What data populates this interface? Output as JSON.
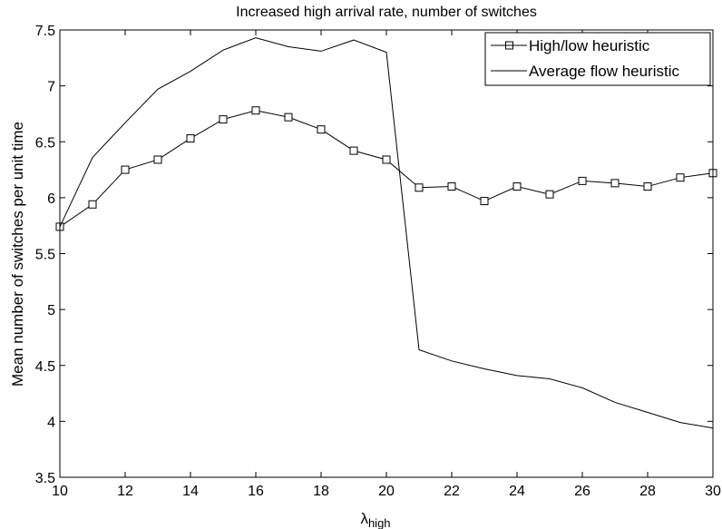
{
  "chart_data": {
    "type": "line",
    "title": "Increased high arrival rate, number of switches",
    "xlabel": "λ",
    "xlabel_sub": "high",
    "ylabel": "Mean number of switches per unit time",
    "xlim": [
      10,
      30
    ],
    "ylim": [
      3.5,
      7.5
    ],
    "xticks": [
      10,
      12,
      14,
      16,
      18,
      20,
      22,
      24,
      26,
      28,
      30
    ],
    "yticks": [
      3.5,
      4,
      4.5,
      5,
      5.5,
      6,
      6.5,
      7,
      7.5
    ],
    "grid": false,
    "legend_position": "top-right",
    "x": [
      10,
      11,
      12,
      13,
      14,
      15,
      16,
      17,
      18,
      19,
      20,
      21,
      22,
      23,
      24,
      25,
      26,
      27,
      28,
      29,
      30
    ],
    "series": [
      {
        "name": "High/low heuristic",
        "marker": "square",
        "color": "#000000",
        "values": [
          5.74,
          5.94,
          6.25,
          6.34,
          6.53,
          6.7,
          6.78,
          6.72,
          6.61,
          6.42,
          6.34,
          6.09,
          6.1,
          5.97,
          6.1,
          6.03,
          6.15,
          6.13,
          6.1,
          6.18,
          6.22
        ]
      },
      {
        "name": "Average flow heuristic",
        "marker": "none",
        "color": "#000000",
        "values": [
          5.74,
          6.36,
          6.67,
          6.97,
          7.13,
          7.32,
          7.43,
          7.35,
          7.31,
          7.41,
          7.3,
          4.64,
          4.54,
          4.47,
          4.41,
          4.38,
          4.3,
          4.17,
          4.08,
          3.99,
          3.94
        ]
      }
    ]
  }
}
